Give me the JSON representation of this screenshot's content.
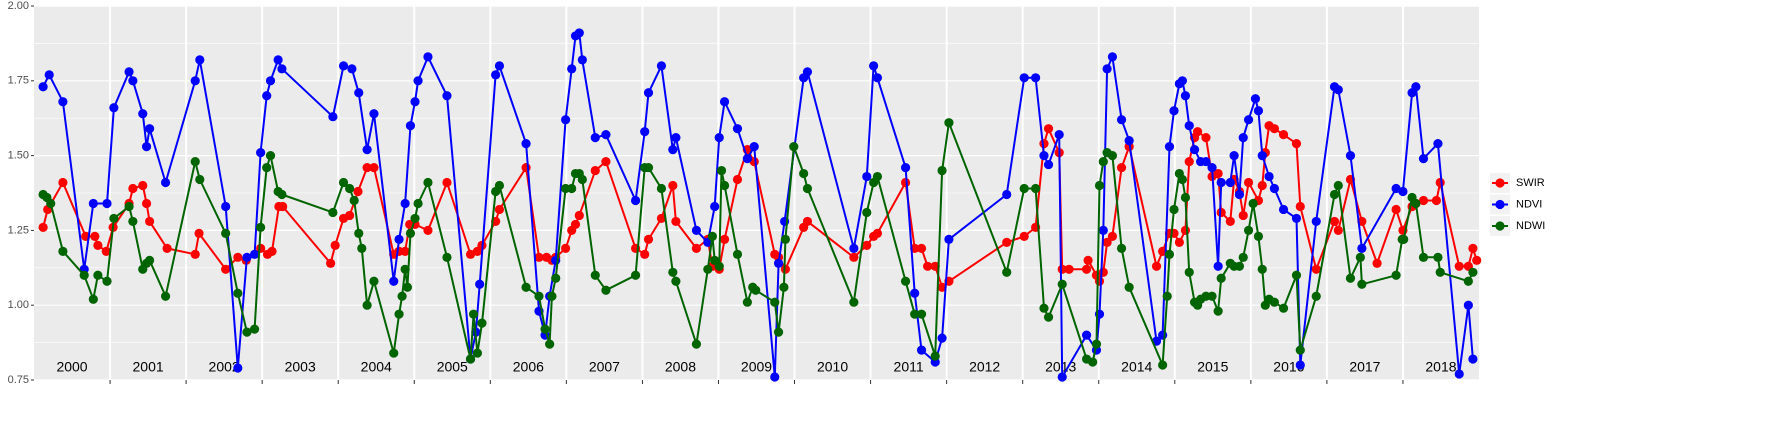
{
  "chart_data": {
    "type": "line",
    "legend": "right",
    "grid": true,
    "xlim": [
      2000,
      2019
    ],
    "xticks": [
      2001,
      2002,
      2003,
      2004,
      2005,
      2006,
      2007,
      2008,
      2009,
      2010,
      2011,
      2012,
      2013,
      2014,
      2015,
      2016,
      2017,
      2018
    ],
    "ylim": [
      0.75,
      2.0
    ],
    "yticks": [
      {
        "value": 0.75,
        "label": "0.75"
      },
      {
        "value": 1.0,
        "label": "1.00"
      },
      {
        "value": 1.25,
        "label": "1.25"
      },
      {
        "value": 1.5,
        "label": "1.50"
      },
      {
        "value": 1.75,
        "label": "1.75"
      },
      {
        "value": 2.0,
        "label": "2.00"
      }
    ],
    "annotations": [
      {
        "text": "2000",
        "x": 2000.5,
        "y": 0.79
      },
      {
        "text": "2001",
        "x": 2001.5,
        "y": 0.79
      },
      {
        "text": "2002",
        "x": 2002.5,
        "y": 0.79
      },
      {
        "text": "2003",
        "x": 2003.5,
        "y": 0.79
      },
      {
        "text": "2004",
        "x": 2004.5,
        "y": 0.79
      },
      {
        "text": "2005",
        "x": 2005.5,
        "y": 0.79
      },
      {
        "text": "2006",
        "x": 2006.5,
        "y": 0.79
      },
      {
        "text": "2007",
        "x": 2007.5,
        "y": 0.79
      },
      {
        "text": "2008",
        "x": 2008.5,
        "y": 0.79
      },
      {
        "text": "2009",
        "x": 2009.5,
        "y": 0.79
      },
      {
        "text": "2010",
        "x": 2010.5,
        "y": 0.79
      },
      {
        "text": "2011",
        "x": 2011.5,
        "y": 0.79
      },
      {
        "text": "2012",
        "x": 2012.5,
        "y": 0.79
      },
      {
        "text": "2013",
        "x": 2013.5,
        "y": 0.79
      },
      {
        "text": "2014",
        "x": 2014.5,
        "y": 0.79
      },
      {
        "text": "2015",
        "x": 2015.5,
        "y": 0.79
      },
      {
        "text": "2016",
        "x": 2016.5,
        "y": 0.79
      },
      {
        "text": "2017",
        "x": 2017.5,
        "y": 0.79
      },
      {
        "text": "2018",
        "x": 2018.5,
        "y": 0.79
      }
    ],
    "series": [
      {
        "name": "SWIR",
        "color": "#ff0000",
        "x": [
          2000.12,
          2000.18,
          2000.38,
          2000.68,
          2000.8,
          2000.84,
          2000.95,
          2001.04,
          2001.25,
          2001.3,
          2001.43,
          2001.48,
          2001.52,
          2001.75,
          2002.12,
          2002.17,
          2002.52,
          2002.68,
          2002.79,
          2002.98,
          2003.07,
          2003.13,
          2003.22,
          2003.27,
          2003.9,
          2003.96,
          2004.07,
          2004.15,
          2004.26,
          2004.38,
          2004.47,
          2004.73,
          2004.8,
          2004.88,
          2004.94,
          2005.01,
          2005.18,
          2005.43,
          2005.74,
          2005.83,
          2005.89,
          2006.07,
          2006.12,
          2006.47,
          2006.64,
          2006.74,
          2006.81,
          2006.86,
          2006.99,
          2007.07,
          2007.12,
          2007.17,
          2007.38,
          2007.52,
          2007.91,
          2008.03,
          2008.08,
          2008.25,
          2008.4,
          2008.44,
          2008.71,
          2008.86,
          2008.92,
          2009.01,
          2009.08,
          2009.25,
          2009.38,
          2009.47,
          2009.74,
          2009.79,
          2009.88,
          2010.12,
          2010.17,
          2010.78,
          2010.95,
          2011.04,
          2011.09,
          2011.46,
          2011.58,
          2011.67,
          2011.75,
          2011.85,
          2011.94,
          2012.03,
          2012.79,
          2013.02,
          2013.17,
          2013.28,
          2013.34,
          2013.48,
          2013.52,
          2013.61,
          2013.84,
          2013.86,
          2013.97,
          2014.01,
          2014.06,
          2014.11,
          2014.18,
          2014.3,
          2014.4,
          2014.76,
          2014.84,
          2014.93,
          2014.99,
          2015.06,
          2015.14,
          2015.19,
          2015.26,
          2015.3,
          2015.41,
          2015.49,
          2015.57,
          2015.61,
          2015.73,
          2015.78,
          2015.85,
          2015.9,
          2015.97,
          2016.1,
          2016.15,
          2016.19,
          2016.24,
          2016.31,
          2016.43,
          2016.6,
          2016.65,
          2016.86,
          2017.1,
          2017.15,
          2017.31,
          2017.46,
          2017.66,
          2017.91,
          2018.0,
          2018.12,
          2018.17,
          2018.27,
          2018.44,
          2018.49,
          2018.74,
          2018.86,
          2018.92,
          2018.97
        ],
        "values": [
          1.26,
          1.32,
          1.41,
          1.23,
          1.23,
          1.2,
          1.18,
          1.26,
          1.34,
          1.39,
          1.4,
          1.34,
          1.28,
          1.19,
          1.17,
          1.24,
          1.12,
          1.16,
          1.15,
          1.19,
          1.17,
          1.18,
          1.33,
          1.33,
          1.14,
          1.2,
          1.29,
          1.3,
          1.38,
          1.46,
          1.46,
          1.17,
          1.18,
          1.18,
          1.27,
          1.27,
          1.25,
          1.41,
          1.17,
          1.18,
          1.2,
          1.28,
          1.32,
          1.46,
          1.16,
          1.16,
          1.15,
          1.16,
          1.19,
          1.25,
          1.27,
          1.3,
          1.45,
          1.48,
          1.19,
          1.17,
          1.22,
          1.29,
          1.4,
          1.28,
          1.19,
          1.22,
          1.13,
          1.12,
          1.22,
          1.42,
          1.52,
          1.48,
          1.17,
          1.16,
          1.12,
          1.26,
          1.28,
          1.16,
          1.2,
          1.23,
          1.24,
          1.41,
          1.19,
          1.19,
          1.13,
          1.13,
          1.06,
          1.08,
          1.21,
          1.23,
          1.26,
          1.54,
          1.59,
          1.51,
          1.12,
          1.12,
          1.12,
          1.15,
          1.1,
          1.08,
          1.11,
          1.21,
          1.23,
          1.46,
          1.53,
          1.13,
          1.18,
          1.24,
          1.24,
          1.21,
          1.25,
          1.48,
          1.56,
          1.58,
          1.56,
          1.43,
          1.44,
          1.31,
          1.28,
          1.42,
          1.38,
          1.3,
          1.41,
          1.35,
          1.4,
          1.51,
          1.6,
          1.59,
          1.57,
          1.54,
          1.33,
          1.12,
          1.28,
          1.25,
          1.42,
          1.28,
          1.14,
          1.32,
          1.25,
          1.33,
          1.34,
          1.35,
          1.35,
          1.41,
          1.13,
          1.13,
          1.19,
          1.15
        ]
      },
      {
        "name": "NDVI",
        "color": "#0000ff",
        "x": [
          2000.12,
          2000.2,
          2000.38,
          2000.66,
          2000.78,
          2000.96,
          2001.05,
          2001.25,
          2001.3,
          2001.43,
          2001.48,
          2001.52,
          2001.73,
          2002.12,
          2002.18,
          2002.52,
          2002.68,
          2002.8,
          2002.9,
          2002.98,
          2003.06,
          2003.11,
          2003.21,
          2003.26,
          2003.93,
          2004.07,
          2004.18,
          2004.27,
          2004.38,
          2004.47,
          2004.73,
          2004.8,
          2004.88,
          2004.95,
          2005.01,
          2005.05,
          2005.18,
          2005.43,
          2005.74,
          2005.81,
          2005.86,
          2006.07,
          2006.12,
          2006.47,
          2006.64,
          2006.72,
          2006.78,
          2006.86,
          2006.99,
          2007.07,
          2007.12,
          2007.17,
          2007.21,
          2007.38,
          2007.52,
          2007.91,
          2008.03,
          2008.08,
          2008.25,
          2008.4,
          2008.44,
          2008.71,
          2008.86,
          2008.95,
          2009.01,
          2009.08,
          2009.25,
          2009.38,
          2009.47,
          2009.74,
          2009.79,
          2009.87,
          2010.12,
          2010.17,
          2010.78,
          2010.95,
          2011.04,
          2011.09,
          2011.46,
          2011.58,
          2011.67,
          2011.85,
          2011.94,
          2012.03,
          2012.79,
          2013.02,
          2013.17,
          2013.28,
          2013.34,
          2013.48,
          2013.52,
          2013.84,
          2013.97,
          2014.01,
          2014.06,
          2014.11,
          2014.18,
          2014.3,
          2014.4,
          2014.76,
          2014.84,
          2014.93,
          2014.99,
          2015.06,
          2015.1,
          2015.14,
          2015.19,
          2015.26,
          2015.34,
          2015.41,
          2015.49,
          2015.57,
          2015.61,
          2015.73,
          2015.78,
          2015.85,
          2015.9,
          2015.97,
          2016.06,
          2016.1,
          2016.15,
          2016.24,
          2016.31,
          2016.43,
          2016.6,
          2016.65,
          2016.86,
          2017.1,
          2017.15,
          2017.31,
          2017.46,
          2017.91,
          2018.0,
          2018.12,
          2018.17,
          2018.27,
          2018.46,
          2018.74,
          2018.86,
          2018.92
        ],
        "values": [
          1.73,
          1.77,
          1.68,
          1.12,
          1.34,
          1.34,
          1.66,
          1.78,
          1.75,
          1.64,
          1.53,
          1.59,
          1.41,
          1.75,
          1.82,
          1.33,
          0.79,
          1.16,
          1.17,
          1.51,
          1.7,
          1.75,
          1.82,
          1.79,
          1.63,
          1.8,
          1.79,
          1.71,
          1.52,
          1.64,
          1.08,
          1.22,
          1.34,
          1.6,
          1.68,
          1.75,
          1.83,
          1.7,
          0.82,
          0.91,
          1.07,
          1.77,
          1.8,
          1.54,
          0.98,
          0.9,
          1.03,
          1.15,
          1.62,
          1.79,
          1.9,
          1.91,
          1.82,
          1.56,
          1.57,
          1.35,
          1.58,
          1.71,
          1.8,
          1.52,
          1.56,
          1.25,
          1.21,
          1.33,
          1.56,
          1.68,
          1.59,
          1.49,
          1.53,
          0.76,
          1.14,
          1.28,
          1.76,
          1.78,
          1.19,
          1.43,
          1.8,
          1.76,
          1.46,
          1.04,
          0.85,
          0.81,
          0.89,
          1.22,
          1.37,
          1.76,
          1.76,
          1.5,
          1.47,
          1.57,
          0.76,
          0.9,
          0.85,
          0.97,
          1.25,
          1.79,
          1.83,
          1.62,
          1.55,
          0.88,
          0.9,
          1.53,
          1.65,
          1.74,
          1.75,
          1.7,
          1.6,
          1.52,
          1.48,
          1.48,
          1.46,
          1.13,
          1.41,
          1.41,
          1.5,
          1.37,
          1.56,
          1.62,
          1.69,
          1.65,
          1.5,
          1.43,
          1.39,
          1.32,
          1.29,
          0.8,
          1.28,
          1.73,
          1.72,
          1.5,
          1.19,
          1.39,
          1.38,
          1.71,
          1.73,
          1.49,
          1.54,
          0.77,
          1.0,
          0.82
        ]
      },
      {
        "name": "NDWI",
        "color": "#006400",
        "x": [
          2000.12,
          2000.17,
          2000.22,
          2000.38,
          2000.66,
          2000.78,
          2000.84,
          2000.96,
          2001.05,
          2001.25,
          2001.3,
          2001.43,
          2001.48,
          2001.52,
          2001.73,
          2002.12,
          2002.18,
          2002.52,
          2002.68,
          2002.8,
          2002.9,
          2002.98,
          2003.06,
          2003.11,
          2003.21,
          2003.26,
          2003.93,
          2004.07,
          2004.15,
          2004.21,
          2004.27,
          2004.31,
          2004.38,
          2004.47,
          2004.73,
          2004.8,
          2004.84,
          2004.88,
          2004.91,
          2004.95,
          2005.01,
          2005.05,
          2005.18,
          2005.43,
          2005.74,
          2005.78,
          2005.83,
          2005.89,
          2006.07,
          2006.12,
          2006.47,
          2006.64,
          2006.72,
          2006.78,
          2006.81,
          2006.86,
          2006.99,
          2007.07,
          2007.12,
          2007.17,
          2007.21,
          2007.38,
          2007.52,
          2007.91,
          2008.03,
          2008.08,
          2008.25,
          2008.4,
          2008.44,
          2008.71,
          2008.86,
          2008.92,
          2008.95,
          2009.01,
          2009.04,
          2009.08,
          2009.25,
          2009.38,
          2009.45,
          2009.49,
          2009.74,
          2009.79,
          2009.86,
          2009.88,
          2009.99,
          2010.12,
          2010.17,
          2010.78,
          2010.95,
          2011.04,
          2011.09,
          2011.46,
          2011.58,
          2011.67,
          2011.85,
          2011.94,
          2012.03,
          2012.79,
          2013.02,
          2013.17,
          2013.28,
          2013.34,
          2013.52,
          2013.84,
          2013.92,
          2013.97,
          2014.01,
          2014.06,
          2014.11,
          2014.18,
          2014.3,
          2014.4,
          2014.84,
          2014.9,
          2014.93,
          2014.99,
          2015.06,
          2015.1,
          2015.14,
          2015.19,
          2015.26,
          2015.3,
          2015.34,
          2015.41,
          2015.49,
          2015.57,
          2015.61,
          2015.73,
          2015.78,
          2015.85,
          2015.9,
          2015.97,
          2016.03,
          2016.1,
          2016.15,
          2016.19,
          2016.24,
          2016.31,
          2016.43,
          2016.6,
          2016.65,
          2016.86,
          2017.1,
          2017.15,
          2017.31,
          2017.44,
          2017.46,
          2017.91,
          2017.99,
          2018.01,
          2018.12,
          2018.17,
          2018.27,
          2018.46,
          2018.49,
          2018.86,
          2018.92
        ],
        "values": [
          1.37,
          1.36,
          1.34,
          1.18,
          1.1,
          1.02,
          1.1,
          1.08,
          1.29,
          1.33,
          1.28,
          1.12,
          1.14,
          1.15,
          1.03,
          1.48,
          1.42,
          1.24,
          1.04,
          0.91,
          0.92,
          1.26,
          1.46,
          1.5,
          1.38,
          1.37,
          1.31,
          1.41,
          1.39,
          1.35,
          1.24,
          1.19,
          1.0,
          1.08,
          0.84,
          0.97,
          1.03,
          1.12,
          1.06,
          1.24,
          1.29,
          1.34,
          1.41,
          1.16,
          0.82,
          0.97,
          0.84,
          0.94,
          1.38,
          1.4,
          1.06,
          1.03,
          0.92,
          0.87,
          1.03,
          1.09,
          1.39,
          1.39,
          1.44,
          1.44,
          1.42,
          1.1,
          1.05,
          1.1,
          1.46,
          1.46,
          1.39,
          1.11,
          1.08,
          0.87,
          1.12,
          1.23,
          1.15,
          1.13,
          1.45,
          1.4,
          1.17,
          1.01,
          1.06,
          1.05,
          1.01,
          0.91,
          1.06,
          1.22,
          1.53,
          1.44,
          1.39,
          1.01,
          1.31,
          1.41,
          1.43,
          1.08,
          0.97,
          0.97,
          0.83,
          1.45,
          1.61,
          1.11,
          1.39,
          1.39,
          0.99,
          0.96,
          1.07,
          0.82,
          0.81,
          0.87,
          1.4,
          1.48,
          1.51,
          1.5,
          1.19,
          1.06,
          0.8,
          1.03,
          1.17,
          1.32,
          1.44,
          1.42,
          1.36,
          1.11,
          1.01,
          1.0,
          1.02,
          1.03,
          1.03,
          0.98,
          1.09,
          1.14,
          1.13,
          1.13,
          1.16,
          1.25,
          1.34,
          1.23,
          1.12,
          1.0,
          1.02,
          1.01,
          0.99,
          1.1,
          0.85,
          1.03,
          1.37,
          1.4,
          1.09,
          1.16,
          1.07,
          1.1,
          1.22,
          1.22,
          1.36,
          1.34,
          1.16,
          1.16,
          1.11,
          1.08,
          1.11
        ]
      }
    ]
  }
}
